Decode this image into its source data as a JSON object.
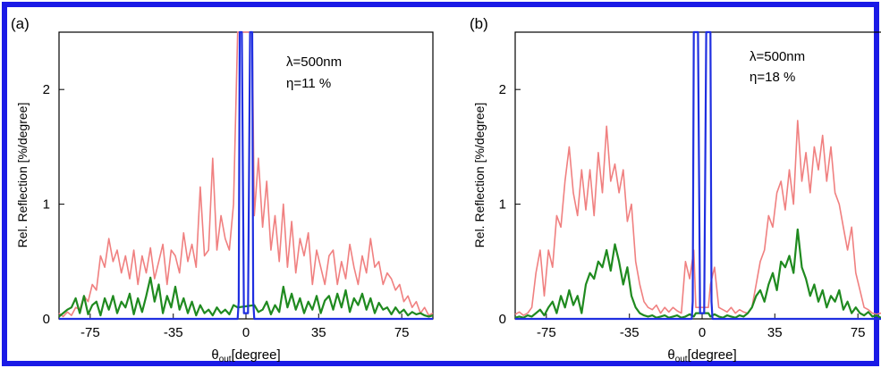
{
  "colors": {
    "border": "#1a1ae6",
    "pink": "#f08080",
    "green": "#1f8a1f",
    "blue": "#1f2fe0",
    "axis": "#000000"
  },
  "chart_data": [
    {
      "type": "line",
      "panel_label": "(a)",
      "xlabel_main": "θ",
      "xlabel_sub": "out",
      "xlabel_rest": "[degree]",
      "ylabel": "Rel. Reflection [%/degree]",
      "xlim": [
        -90,
        90
      ],
      "ylim": [
        0,
        2.5
      ],
      "xticks": [
        -75,
        -35,
        0,
        35,
        75
      ],
      "yticks": [
        0,
        1,
        2
      ],
      "annotations": [
        "λ=500nm",
        "η=11 %"
      ],
      "series": [
        {
          "color": "pink",
          "x": [
            -90,
            -88,
            -86,
            -84,
            -82,
            -80,
            -78,
            -76,
            -74,
            -72,
            -70,
            -68,
            -66,
            -64,
            -62,
            -60,
            -58,
            -56,
            -54,
            -52,
            -50,
            -48,
            -46,
            -44,
            -42,
            -40,
            -38,
            -36,
            -34,
            -32,
            -30,
            -28,
            -26,
            -24,
            -22,
            -20,
            -18,
            -16,
            -14,
            -12,
            -10,
            -8,
            -6,
            -4,
            -3,
            -2,
            2,
            3,
            4,
            6,
            8,
            10,
            12,
            14,
            16,
            18,
            20,
            22,
            24,
            26,
            28,
            30,
            32,
            34,
            36,
            38,
            40,
            42,
            44,
            46,
            48,
            50,
            52,
            54,
            56,
            58,
            60,
            62,
            64,
            66,
            68,
            70,
            72,
            74,
            76,
            78,
            80,
            82,
            84,
            86,
            88,
            90
          ],
          "y": [
            0.05,
            0.02,
            0.06,
            0.03,
            0.1,
            0.08,
            0.2,
            0.15,
            0.3,
            0.25,
            0.55,
            0.45,
            0.7,
            0.5,
            0.6,
            0.4,
            0.55,
            0.35,
            0.6,
            0.3,
            0.55,
            0.4,
            0.62,
            0.35,
            0.5,
            0.65,
            0.3,
            0.6,
            0.55,
            0.4,
            0.75,
            0.5,
            0.65,
            0.45,
            1.15,
            0.55,
            0.6,
            1.4,
            0.6,
            0.9,
            0.7,
            0.6,
            1.0,
            2.5,
            2.5,
            2.5,
            2.5,
            2.5,
            0.9,
            1.4,
            0.8,
            1.2,
            0.6,
            0.9,
            0.5,
            1.0,
            0.45,
            0.85,
            0.4,
            0.7,
            0.55,
            0.75,
            0.3,
            0.6,
            0.45,
            0.3,
            0.55,
            0.6,
            0.3,
            0.5,
            0.35,
            0.65,
            0.45,
            0.3,
            0.55,
            0.4,
            0.7,
            0.45,
            0.5,
            0.3,
            0.4,
            0.35,
            0.25,
            0.3,
            0.15,
            0.2,
            0.1,
            0.15,
            0.05,
            0.1,
            0.03,
            0.05
          ]
        },
        {
          "color": "green",
          "x": [
            -90,
            -88,
            -86,
            -84,
            -82,
            -80,
            -78,
            -76,
            -74,
            -72,
            -70,
            -68,
            -66,
            -64,
            -62,
            -60,
            -58,
            -56,
            -54,
            -52,
            -50,
            -48,
            -46,
            -44,
            -42,
            -40,
            -38,
            -36,
            -34,
            -32,
            -30,
            -28,
            -26,
            -24,
            -22,
            -20,
            -18,
            -16,
            -14,
            -12,
            -10,
            -8,
            -6,
            -4,
            4,
            6,
            8,
            10,
            12,
            14,
            16,
            18,
            20,
            22,
            24,
            26,
            28,
            30,
            32,
            34,
            36,
            38,
            40,
            42,
            44,
            46,
            48,
            50,
            52,
            54,
            56,
            58,
            60,
            62,
            64,
            66,
            68,
            70,
            72,
            74,
            76,
            78,
            80,
            82,
            84,
            86,
            88,
            90
          ],
          "y": [
            0.02,
            0.05,
            0.08,
            0.1,
            0.18,
            0.05,
            0.2,
            0.04,
            0.12,
            0.15,
            0.03,
            0.18,
            0.08,
            0.2,
            0.05,
            0.15,
            0.1,
            0.22,
            0.04,
            0.18,
            0.06,
            0.2,
            0.36,
            0.15,
            0.3,
            0.05,
            0.2,
            0.1,
            0.28,
            0.08,
            0.18,
            0.05,
            0.15,
            0.03,
            0.12,
            0.05,
            0.08,
            0.03,
            0.1,
            0.05,
            0.08,
            0.04,
            0.12,
            0.1,
            0.12,
            0.06,
            0.08,
            0.15,
            0.04,
            0.12,
            0.06,
            0.28,
            0.1,
            0.22,
            0.08,
            0.18,
            0.05,
            0.15,
            0.08,
            0.2,
            0.05,
            0.16,
            0.2,
            0.08,
            0.22,
            0.1,
            0.25,
            0.06,
            0.18,
            0.12,
            0.22,
            0.08,
            0.18,
            0.05,
            0.14,
            0.08,
            0.1,
            0.04,
            0.1,
            0.05,
            0.08,
            0.03,
            0.06,
            0.04,
            0.05,
            0.03,
            0.02,
            0.03
          ]
        },
        {
          "color": "blue",
          "x": [
            -90,
            -4,
            -3.5,
            -3,
            -2,
            -1,
            1,
            2,
            3,
            3.5,
            4,
            90
          ],
          "y": [
            0,
            0,
            0.15,
            2.5,
            2.5,
            0.05,
            0.05,
            2.5,
            2.5,
            0.15,
            0,
            0
          ]
        }
      ]
    },
    {
      "type": "line",
      "panel_label": "(b)",
      "xlabel_main": "θ",
      "xlabel_sub": "out",
      "xlabel_rest": "[degree]",
      "ylabel": "Rel. Reflection [%/degree]",
      "xlim": [
        -90,
        90
      ],
      "ylim": [
        0,
        2.5
      ],
      "xticks": [
        -75,
        -35,
        0,
        35,
        75
      ],
      "yticks": [
        0,
        1,
        2
      ],
      "annotations": [
        "λ=500nm",
        "η=18 %"
      ],
      "series": [
        {
          "color": "pink",
          "x": [
            -90,
            -88,
            -86,
            -84,
            -82,
            -80,
            -78,
            -76,
            -74,
            -72,
            -70,
            -68,
            -66,
            -64,
            -62,
            -60,
            -58,
            -56,
            -54,
            -52,
            -50,
            -48,
            -46,
            -44,
            -42,
            -40,
            -38,
            -36,
            -34,
            -32,
            -30,
            -28,
            -26,
            -24,
            -22,
            -20,
            -18,
            -16,
            -14,
            -12,
            -10,
            -8,
            -6,
            -4,
            -3,
            3,
            4,
            6,
            8,
            10,
            12,
            14,
            16,
            18,
            20,
            22,
            24,
            26,
            28,
            30,
            32,
            34,
            36,
            38,
            40,
            42,
            44,
            46,
            48,
            50,
            52,
            54,
            56,
            58,
            60,
            62,
            64,
            66,
            68,
            70,
            72,
            74,
            76,
            78,
            80,
            82,
            84,
            86,
            88,
            90
          ],
          "y": [
            0.04,
            0.06,
            0.03,
            0.05,
            0.1,
            0.4,
            0.6,
            0.2,
            0.6,
            0.45,
            0.9,
            0.8,
            1.2,
            1.5,
            1.1,
            0.9,
            1.3,
            0.95,
            1.3,
            0.9,
            1.45,
            1.1,
            1.68,
            1.2,
            1.35,
            1.1,
            1.3,
            0.85,
            1.0,
            0.5,
            0.3,
            0.15,
            0.1,
            0.08,
            0.12,
            0.05,
            0.1,
            0.06,
            0.1,
            0.07,
            0.05,
            0.5,
            0.35,
            0.6,
            0.1,
            0.1,
            0.3,
            0.45,
            0.1,
            0.08,
            0.06,
            0.1,
            0.05,
            0.08,
            0.06,
            0.05,
            0.1,
            0.3,
            0.5,
            0.6,
            0.9,
            0.8,
            1.1,
            1.2,
            0.95,
            1.3,
            1.0,
            1.73,
            1.2,
            1.45,
            1.1,
            1.5,
            1.3,
            1.6,
            1.2,
            1.5,
            1.1,
            1.0,
            0.8,
            0.6,
            0.8,
            0.4,
            0.25,
            0.1,
            0.08,
            0.05,
            0.04,
            0.05,
            0.03,
            0.04
          ]
        },
        {
          "color": "green",
          "x": [
            -90,
            -88,
            -86,
            -84,
            -82,
            -80,
            -78,
            -76,
            -74,
            -72,
            -70,
            -68,
            -66,
            -64,
            -62,
            -60,
            -58,
            -56,
            -54,
            -52,
            -50,
            -48,
            -46,
            -44,
            -42,
            -40,
            -38,
            -36,
            -34,
            -32,
            -30,
            -28,
            -26,
            -24,
            -22,
            -20,
            -18,
            -16,
            -14,
            -12,
            -10,
            -8,
            -6,
            -4,
            -3,
            3,
            4,
            6,
            8,
            10,
            12,
            14,
            16,
            18,
            20,
            22,
            24,
            26,
            28,
            30,
            32,
            34,
            36,
            38,
            40,
            42,
            44,
            46,
            48,
            50,
            52,
            54,
            56,
            58,
            60,
            62,
            64,
            66,
            68,
            70,
            72,
            74,
            76,
            78,
            80,
            82,
            84,
            86,
            88,
            90
          ],
          "y": [
            0.01,
            0.02,
            0.01,
            0.03,
            0.02,
            0.05,
            0.08,
            0.03,
            0.1,
            0.15,
            0.05,
            0.2,
            0.1,
            0.25,
            0.12,
            0.2,
            0.05,
            0.3,
            0.4,
            0.35,
            0.5,
            0.45,
            0.6,
            0.42,
            0.65,
            0.5,
            0.3,
            0.45,
            0.2,
            0.1,
            0.05,
            0.03,
            0.02,
            0.03,
            0.01,
            0.02,
            0.03,
            0.01,
            0.02,
            0.03,
            0.01,
            0.02,
            0.04,
            0.02,
            0.05,
            0.05,
            0.02,
            0.04,
            0.02,
            0.01,
            0.03,
            0.02,
            0.01,
            0.03,
            0.02,
            0.05,
            0.1,
            0.2,
            0.25,
            0.15,
            0.3,
            0.4,
            0.25,
            0.5,
            0.45,
            0.55,
            0.4,
            0.78,
            0.45,
            0.35,
            0.2,
            0.3,
            0.15,
            0.25,
            0.1,
            0.2,
            0.15,
            0.25,
            0.08,
            0.15,
            0.05,
            0.1,
            0.05,
            0.03,
            0.06,
            0.02,
            0.03,
            0.01,
            0.02,
            0.01
          ]
        },
        {
          "color": "blue",
          "x": [
            -90,
            -5,
            -4.5,
            -4,
            -2,
            -1,
            1,
            2,
            4,
            4.5,
            5,
            90
          ],
          "y": [
            0,
            0,
            0.15,
            2.5,
            2.5,
            0.05,
            0.05,
            2.5,
            2.5,
            0.15,
            0,
            0
          ]
        }
      ]
    }
  ]
}
